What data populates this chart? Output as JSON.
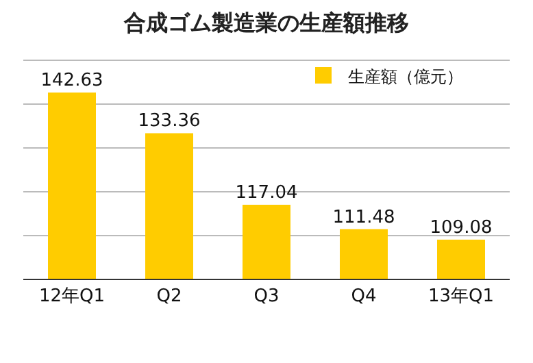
{
  "chart_data": {
    "type": "bar",
    "title": "合成ゴム製造業の生産額推移",
    "categories": [
      "12年Q1",
      "Q2",
      "Q3",
      "Q4",
      "13年Q1"
    ],
    "series": [
      {
        "name": "生産額（億元）",
        "color": "#ffcc00",
        "values": [
          142.63,
          133.36,
          117.04,
          111.48,
          109.08
        ]
      }
    ],
    "ylim": [
      100,
      150
    ],
    "yticks": [
      {
        "value": 110,
        "label": null
      },
      {
        "value": 120,
        "label": null
      },
      {
        "value": 130,
        "label": null
      },
      {
        "value": 140,
        "label": null
      },
      {
        "value": 150,
        "label": null
      }
    ],
    "grid": "y",
    "tick_labels": "x",
    "legend": "top right",
    "data_labels": true
  }
}
